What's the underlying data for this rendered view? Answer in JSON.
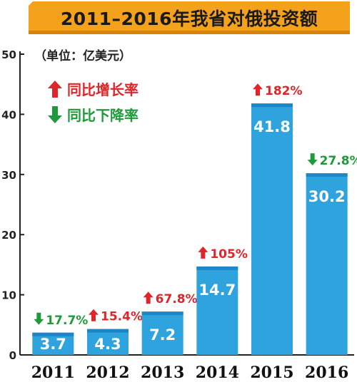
{
  "title": "2011–2016年我省对俄投资额",
  "unit_note": "（单位：亿美元）",
  "legend": {
    "increase": "同比增长率",
    "decrease": "同比下降率"
  },
  "colors": {
    "bar": "#2fa3de",
    "bar_top": "#1d86c7",
    "increase": "#e0252a",
    "decrease": "#1f9a3a",
    "banner": "#f4a11c"
  },
  "chart_data": {
    "type": "bar",
    "title": "2011–2016年我省对俄投资额",
    "ylabel": "",
    "xlabel": "",
    "ylim": [
      0,
      50
    ],
    "yticks": [
      "0",
      "10",
      "20",
      "30",
      "40",
      "50"
    ],
    "categories": [
      "2011",
      "2012",
      "2013",
      "2014",
      "2015",
      "2016"
    ],
    "values": [
      3.7,
      4.3,
      7.2,
      14.7,
      41.8,
      30.2
    ],
    "value_labels": [
      "3.7",
      "4.3",
      "7.2",
      "14.7",
      "41.8",
      "30.2"
    ],
    "change_labels": [
      "17.7%",
      "15.4%",
      "67.8%",
      "105%",
      "182%",
      "27.8%"
    ],
    "change_direction": [
      "down",
      "up",
      "up",
      "up",
      "up",
      "down"
    ],
    "grid": false,
    "legend_position": "top-left"
  }
}
